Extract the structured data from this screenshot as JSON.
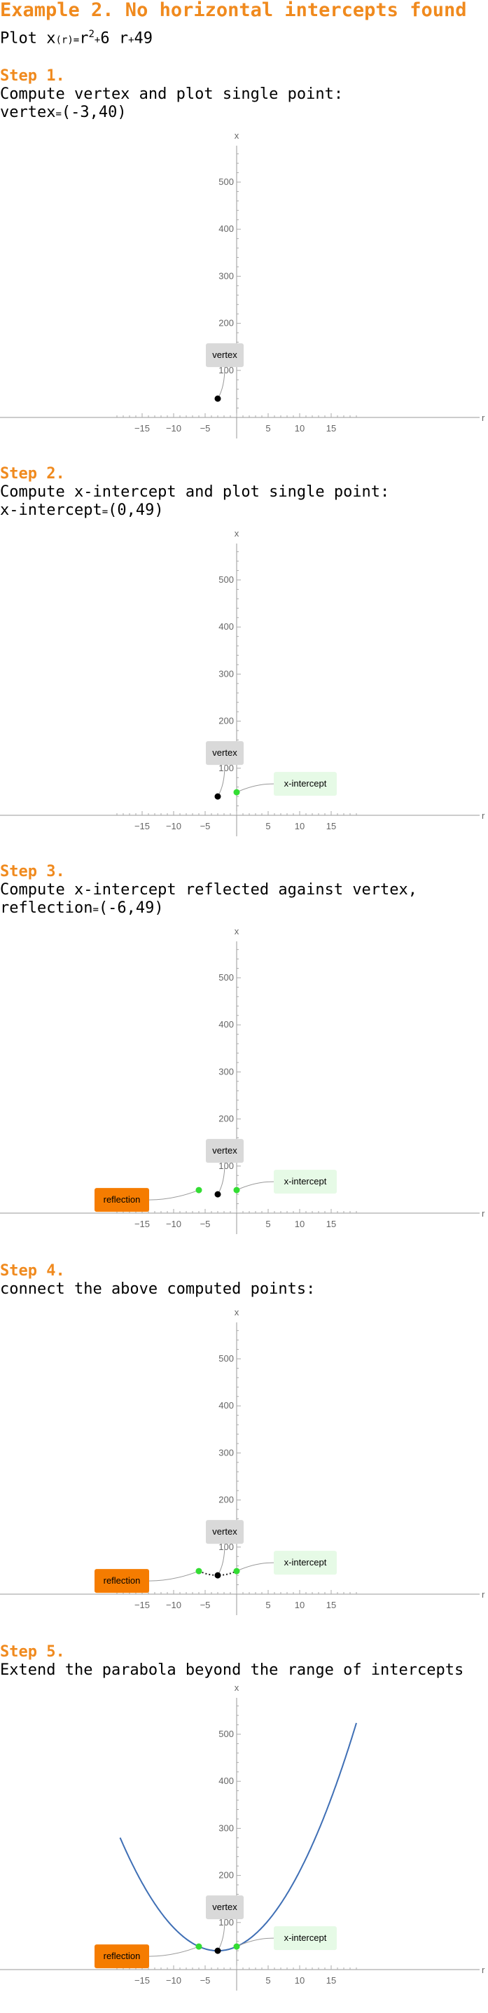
{
  "title": "Example 2. No horizontal intercepts found",
  "subtitle": {
    "prefix": "Plot x",
    "arg": "(r)",
    "eq": "=",
    "var": "r",
    "power": "2",
    "plus1": "+",
    "term2": "6 r",
    "plus2": "+",
    "term3": "49"
  },
  "steps": [
    {
      "heading": "Step 1.",
      "desc1": "Compute vertex and plot single point:",
      "result_name": "vertex",
      "result_value": "(-3,40)",
      "plot": {
        "points": [
          "vertex"
        ],
        "connect": false,
        "curve": false
      }
    },
    {
      "heading": "Step 2.",
      "desc1": "Compute x-intercept and plot single point:",
      "result_name": "x-intercept",
      "result_value": "(0,49)",
      "plot": {
        "points": [
          "vertex",
          "intercept"
        ],
        "connect": false,
        "curve": false
      }
    },
    {
      "heading": "Step 3.",
      "desc1": "Compute x-intercept reflected against vertex,",
      "result_name": "reflection",
      "result_value": "(-6,49)",
      "plot": {
        "points": [
          "vertex",
          "intercept",
          "reflection"
        ],
        "connect": false,
        "curve": false
      }
    },
    {
      "heading": "Step 4.",
      "desc1": "connect the above computed points:",
      "plot": {
        "points": [
          "vertex",
          "intercept",
          "reflection"
        ],
        "connect": true,
        "curve": false
      }
    },
    {
      "heading": "Step 5.",
      "desc1": "Extend the parabola beyond the range of intercepts",
      "plot": {
        "points": [
          "vertex",
          "intercept",
          "reflection"
        ],
        "connect": false,
        "curve": true
      }
    }
  ],
  "chart_data": {
    "type": "scatter",
    "xlabel": "r",
    "ylabel": "x",
    "xlim": [
      -19,
      20
    ],
    "ylim": [
      0,
      570
    ],
    "x_ticks": [
      -15,
      -10,
      -5,
      5,
      10,
      15
    ],
    "y_ticks": [
      100,
      200,
      300,
      400,
      500
    ],
    "function": "x(r) = r^2 + 6 r + 49",
    "points": {
      "vertex": {
        "label": "vertex",
        "r": -3,
        "x": 40,
        "color": "#000000",
        "label_bg": "#d9d9d9",
        "label_color": "#000000"
      },
      "intercept": {
        "label": "x-intercept",
        "r": 0,
        "x": 49,
        "color": "#33dd33",
        "label_bg": "#e6fae6",
        "label_color": "#000000"
      },
      "reflection": {
        "label": "reflection",
        "r": -6,
        "x": 49,
        "color": "#33dd33",
        "label_bg": "#f57c00",
        "label_color": "#000000"
      }
    },
    "curve_color": "#3f6fb5",
    "connect_color": "#222222"
  }
}
